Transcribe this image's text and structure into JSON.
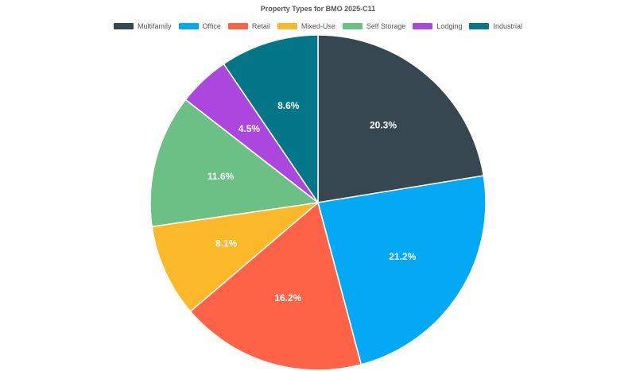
{
  "chart_data": {
    "type": "pie",
    "title": "Property Types for BMO 2025-C11",
    "categories": [
      "Multifamily",
      "Office",
      "Retail",
      "Mixed-Use",
      "Self Storage",
      "Lodging",
      "Industrial"
    ],
    "values": [
      20.3,
      21.2,
      16.2,
      8.1,
      11.6,
      4.5,
      8.6
    ],
    "value_labels": [
      "20.3%",
      "21.2%",
      "16.2%",
      "8.1%",
      "11.6%",
      "4.5%",
      "8.6%"
    ],
    "colors": [
      "#37474f",
      "#03a9f4",
      "#ff6347",
      "#fbb829",
      "#6bc085",
      "#ab47dc",
      "#037688"
    ],
    "legend_position": "top-center"
  }
}
